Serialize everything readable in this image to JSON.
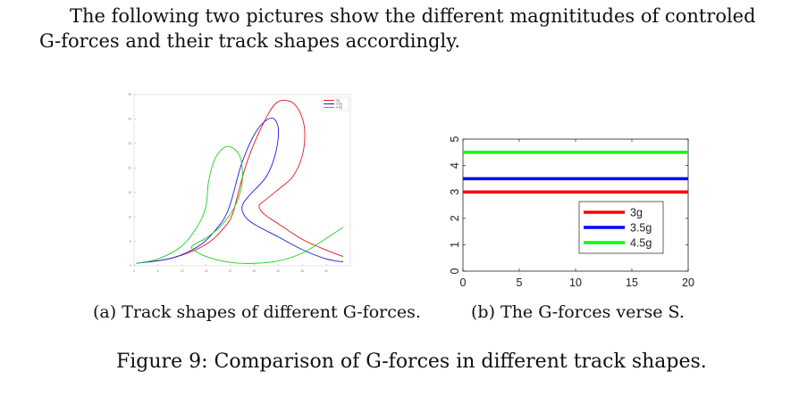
{
  "intro_text": "The following two pictures show the different magnititudes of controled G-forces and their track shapes accordingly.",
  "captions": {
    "a": "(a) Track shapes of different G-forces.",
    "b": "(b) The G-forces verse S.",
    "main": "Figure 9: Comparison of G-forces in different track shapes."
  },
  "chart_data": [
    {
      "type": "line",
      "title": "",
      "xlabel": "",
      "ylabel": "",
      "xlim": [
        0,
        45
      ],
      "ylim": [
        0,
        35
      ],
      "x_ticks": [
        0,
        5,
        10,
        15,
        20,
        25,
        30,
        35,
        40
      ],
      "y_ticks": [
        0,
        5,
        10,
        15,
        20,
        25,
        30,
        35
      ],
      "grid": false,
      "legend": "top-right",
      "series": [
        {
          "name": "3g",
          "color": "#e11a1a",
          "x": [
            0.5,
            8,
            15,
            19,
            20.5,
            21.5,
            23.5,
            26.5,
            29.5,
            32.5,
            34.5,
            35.5,
            35,
            33,
            30,
            27,
            26,
            27,
            30,
            35,
            40,
            43.5
          ],
          "y": [
            0.5,
            1.6,
            4.4,
            8.1,
            10.6,
            14.2,
            21.2,
            28.3,
            33.2,
            33.6,
            31.4,
            27.6,
            22.5,
            18.2,
            15.6,
            13.2,
            12.2,
            10.6,
            8.6,
            5.4,
            3.2,
            1.9
          ]
        },
        {
          "name": "3.5g",
          "color": "#1a1ae8",
          "x": [
            0.5,
            8,
            14,
            18,
            19.5,
            20.5,
            22.5,
            25.5,
            28.5,
            30,
            29.5,
            27.5,
            24,
            22.5,
            23,
            25,
            30,
            35,
            40,
            43.5
          ],
          "y": [
            0.5,
            1.6,
            4.4,
            8.6,
            11.2,
            14.2,
            21.2,
            27.6,
            30.2,
            28.2,
            23.2,
            18.2,
            14.4,
            12.2,
            10.2,
            8.5,
            5.9,
            3.3,
            1.4,
            0.8
          ]
        },
        {
          "name": "4.5g",
          "color": "#1fd01f",
          "x": [
            0.5,
            5,
            10,
            13.5,
            15,
            15.5,
            17,
            19.5,
            22,
            22.5,
            21,
            18,
            15,
            13,
            12,
            15,
            20,
            25,
            30,
            35,
            40,
            43.5
          ],
          "y": [
            0.5,
            1.4,
            4.1,
            8.6,
            12.4,
            17.2,
            22.2,
            24.4,
            22.4,
            17.2,
            12.2,
            8.1,
            5.7,
            4.6,
            3.6,
            1.9,
            0.7,
            0.5,
            1.0,
            2.6,
            5.6,
            7.9
          ]
        }
      ]
    },
    {
      "type": "line",
      "title": "",
      "xlabel": "",
      "ylabel": "",
      "xlim": [
        0,
        20
      ],
      "ylim": [
        0,
        5
      ],
      "x_ticks": [
        0,
        5,
        10,
        15,
        20
      ],
      "y_ticks": [
        0,
        1,
        2,
        3,
        4,
        5
      ],
      "grid": false,
      "legend": "lower-right",
      "series": [
        {
          "name": "3g",
          "color": "#ff0000",
          "x": [
            0,
            20
          ],
          "y": [
            3,
            3
          ]
        },
        {
          "name": "3.5g",
          "color": "#0000ff",
          "x": [
            0,
            20
          ],
          "y": [
            3.5,
            3.5
          ]
        },
        {
          "name": "4.5g",
          "color": "#00ff00",
          "x": [
            0,
            20
          ],
          "y": [
            4.5,
            4.5
          ]
        }
      ]
    }
  ]
}
